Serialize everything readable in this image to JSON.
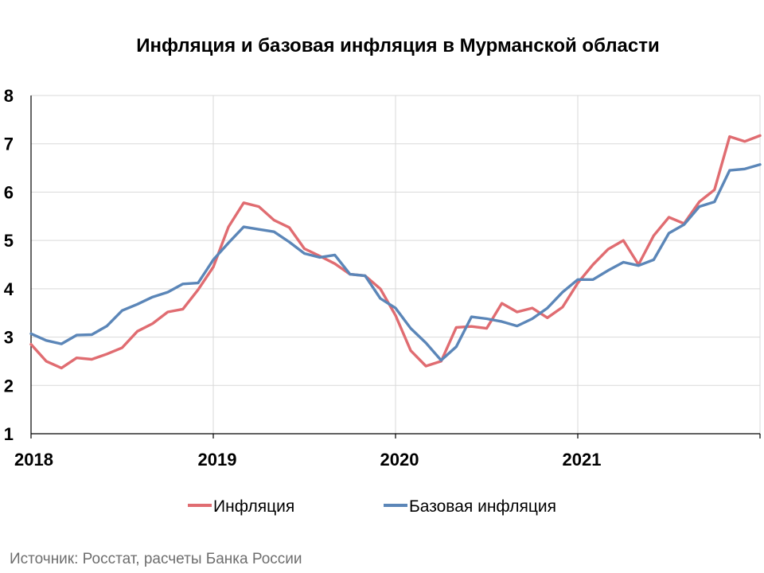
{
  "source_note": "Источник: Росстат, расчеты Банка России",
  "chart_data": {
    "type": "line",
    "title": "Инфляция и базовая инфляция в Мурманской области",
    "xlabel": "",
    "ylabel": "",
    "ylim": [
      1,
      8
    ],
    "yticks": [
      "1",
      "2",
      "3",
      "4",
      "5",
      "6",
      "7",
      "8"
    ],
    "xtick_labels": [
      "2018",
      "2019",
      "2020",
      "2021"
    ],
    "x_start": "2018-01",
    "x_end": "2021-12",
    "grid": true,
    "legend_position": "bottom",
    "series": [
      {
        "name": "Инфляция",
        "color": "#e06c71",
        "values": [
          2.85,
          2.5,
          2.36,
          2.57,
          2.54,
          2.65,
          2.78,
          3.12,
          3.28,
          3.52,
          3.58,
          3.98,
          4.45,
          5.28,
          5.78,
          5.7,
          5.42,
          5.27,
          4.83,
          4.68,
          4.52,
          4.3,
          4.27,
          4.0,
          3.45,
          2.72,
          2.4,
          2.5,
          3.2,
          3.22,
          3.18,
          3.7,
          3.52,
          3.6,
          3.4,
          3.62,
          4.12,
          4.5,
          4.82,
          5.0,
          4.5,
          5.1,
          5.48,
          5.35,
          5.8,
          6.05,
          7.15,
          7.05,
          7.17
        ]
      },
      {
        "name": "Базовая инфляция",
        "color": "#5b86b8",
        "values": [
          3.07,
          2.93,
          2.86,
          3.04,
          3.05,
          3.23,
          3.55,
          3.68,
          3.83,
          3.93,
          4.1,
          4.12,
          4.6,
          4.95,
          5.28,
          5.23,
          5.18,
          4.97,
          4.73,
          4.65,
          4.7,
          4.3,
          4.27,
          3.8,
          3.6,
          3.18,
          2.88,
          2.52,
          2.8,
          3.42,
          3.38,
          3.32,
          3.23,
          3.38,
          3.6,
          3.93,
          4.19,
          4.19,
          4.38,
          4.55,
          4.48,
          4.6,
          5.15,
          5.33,
          5.7,
          5.8,
          6.45,
          6.48,
          6.57
        ]
      }
    ]
  }
}
